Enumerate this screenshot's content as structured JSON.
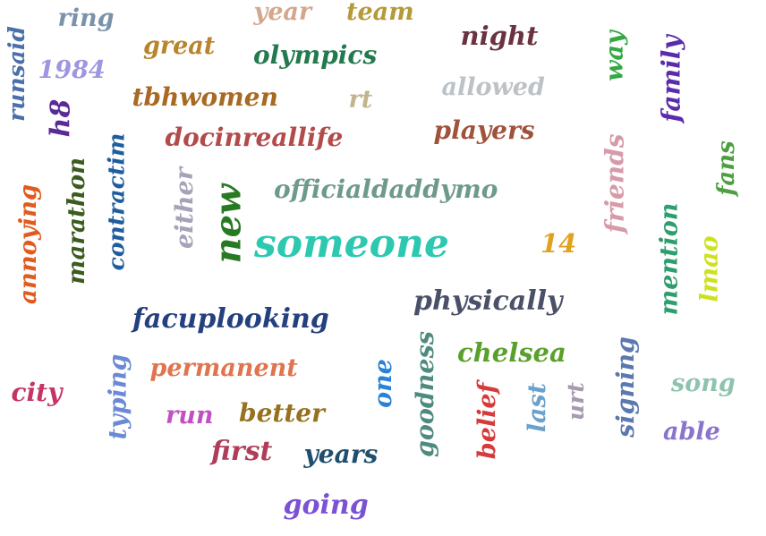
{
  "words": [
    {
      "text": "ring",
      "color": "#7a93ab"
    },
    {
      "text": "year",
      "color": "#d4a78c"
    },
    {
      "text": "team",
      "color": "#b59a3a"
    },
    {
      "text": "runsaid",
      "color": "#4b6fa8"
    },
    {
      "text": "great",
      "color": "#b8842c"
    },
    {
      "text": "olympics",
      "color": "#237a4e"
    },
    {
      "text": "night",
      "color": "#6b3342"
    },
    {
      "text": "way",
      "color": "#33a843"
    },
    {
      "text": "family",
      "color": "#5a2cab"
    },
    {
      "text": "1984",
      "color": "#9e96e0"
    },
    {
      "text": "tbhwomen",
      "color": "#a86a22"
    },
    {
      "text": "rt",
      "color": "#c2b48f"
    },
    {
      "text": "allowed",
      "color": "#bcc2c6"
    },
    {
      "text": "h8",
      "color": "#5a2a96"
    },
    {
      "text": "players",
      "color": "#a0523b"
    },
    {
      "text": "docinreallife",
      "color": "#b34b4b"
    },
    {
      "text": "contractim",
      "color": "#1f5d9e"
    },
    {
      "text": "marathon",
      "color": "#3c5b1f"
    },
    {
      "text": "friends",
      "color": "#d69aa8"
    },
    {
      "text": "fans",
      "color": "#4e9e42"
    },
    {
      "text": "annoying",
      "color": "#e25a1c"
    },
    {
      "text": "either",
      "color": "#a8a2b8"
    },
    {
      "text": "new",
      "color": "#277a22"
    },
    {
      "text": "officialdaddymo",
      "color": "#6e9a8c"
    },
    {
      "text": "someone",
      "color": "#2cc9b0"
    },
    {
      "text": "14",
      "color": "#e0a11c"
    },
    {
      "text": "mention",
      "color": "#2e9e6e"
    },
    {
      "text": "lmao",
      "color": "#cde21c"
    },
    {
      "text": "physically",
      "color": "#4a5068"
    },
    {
      "text": "facuplooking",
      "color": "#24407e"
    },
    {
      "text": "chelsea",
      "color": "#5aa02c"
    },
    {
      "text": "goodness",
      "color": "#4e8a7e"
    },
    {
      "text": "signing",
      "color": "#5b79b0"
    },
    {
      "text": "song",
      "color": "#8ec4ae"
    },
    {
      "text": "city",
      "color": "#c43466"
    },
    {
      "text": "permanent",
      "color": "#e0744e"
    },
    {
      "text": "one",
      "color": "#2883d6"
    },
    {
      "text": "typing",
      "color": "#6b8ad6"
    },
    {
      "text": "last",
      "color": "#6aa2cc"
    },
    {
      "text": "urt",
      "color": "#a89aae"
    },
    {
      "text": "belief",
      "color": "#d63a3a"
    },
    {
      "text": "able",
      "color": "#8a74cc"
    },
    {
      "text": "run",
      "color": "#c24fc4"
    },
    {
      "text": "better",
      "color": "#967220"
    },
    {
      "text": "first",
      "color": "#b03c5a"
    },
    {
      "text": "years",
      "color": "#1f4e6e"
    },
    {
      "text": "going",
      "color": "#7a52d6"
    }
  ]
}
